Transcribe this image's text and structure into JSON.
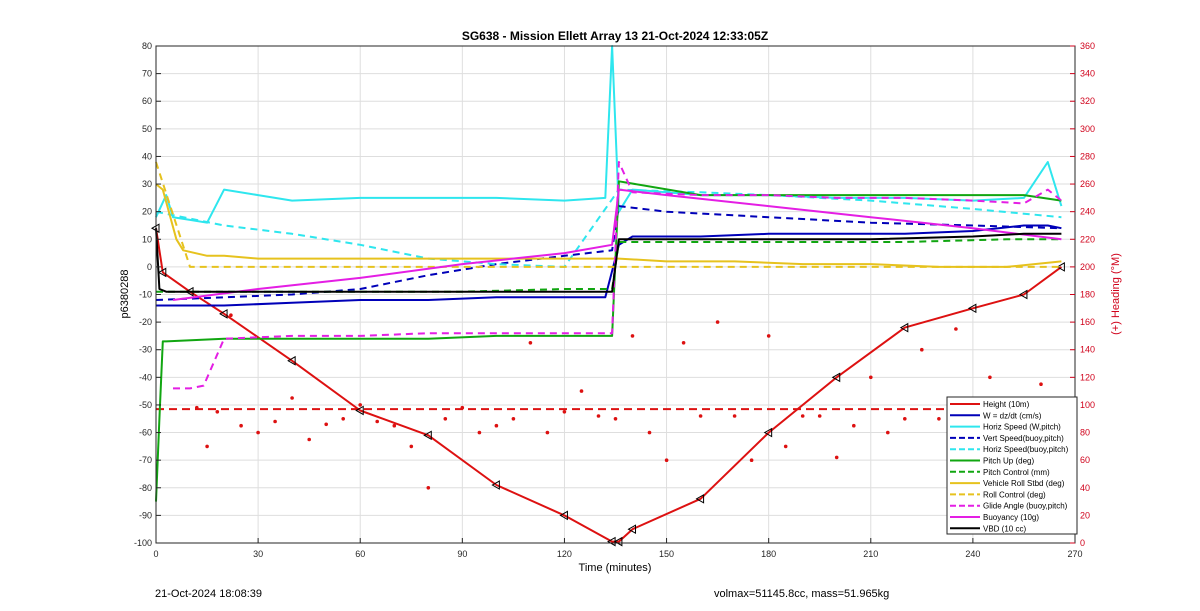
{
  "chart_data": {
    "type": "line",
    "title": "SG638 - Mission Ellett Array 13 21-Oct-2024 12:33:05Z",
    "xlabel": "Time (minutes)",
    "ylabel": "p6380288",
    "y2label": "(+) Heading (°M)",
    "xlim": [
      0,
      270
    ],
    "ylim": [
      -100,
      80
    ],
    "y2lim": [
      0,
      360
    ],
    "xticks": [
      "0",
      "30",
      "60",
      "90",
      "120",
      "150",
      "180",
      "210",
      "240",
      "270"
    ],
    "yticks": [
      "80",
      "70",
      "60",
      "50",
      "40",
      "30",
      "20",
      "10",
      "0",
      "-10",
      "-20",
      "-30",
      "-40",
      "-50",
      "-60",
      "-70",
      "-80",
      "-90",
      "-100"
    ],
    "y2ticks": [
      "360",
      "340",
      "320",
      "300",
      "280",
      "260",
      "240",
      "220",
      "200",
      "180",
      "160",
      "140",
      "120",
      "100",
      "80",
      "60",
      "40",
      "20",
      "0"
    ],
    "grid": true,
    "legend_position": "bottom-right",
    "colors": {
      "red": "#dd1111",
      "blue": "#0000b8",
      "cyan": "#2ee6ee",
      "green": "#11a611",
      "yellow": "#e6c21e",
      "magenta": "#e41ee4",
      "black": "#000000"
    },
    "series": [
      {
        "name": "Height (10m)",
        "color": "red",
        "style": "solid",
        "x": [
          0,
          2,
          10,
          20,
          40,
          60,
          80,
          100,
          120,
          134,
          136,
          140,
          160,
          180,
          200,
          220,
          240,
          255,
          266
        ],
        "y": [
          14,
          -2,
          -9,
          -17,
          -34,
          -52,
          -61,
          -79,
          -90,
          -99.5,
          -99.5,
          -95,
          -84,
          -60,
          -40,
          -22,
          -15,
          -10,
          0
        ]
      },
      {
        "name": "W = dz/dt (cm/s)",
        "color": "blue",
        "style": "solid",
        "x": [
          0,
          5,
          20,
          40,
          60,
          80,
          100,
          120,
          132,
          136,
          140,
          160,
          180,
          200,
          220,
          240,
          255,
          262,
          266
        ],
        "y": [
          -14,
          -14,
          -14,
          -13,
          -12,
          -12,
          -11,
          -11,
          -11,
          8,
          11,
          11,
          12,
          12,
          12,
          13,
          15,
          15,
          14
        ]
      },
      {
        "name": "Horiz Speed (W,pitch)",
        "color": "cyan",
        "style": "solid",
        "x": [
          0,
          3,
          5,
          10,
          15,
          20,
          30,
          40,
          60,
          80,
          100,
          120,
          132,
          134,
          136,
          140,
          160,
          180,
          200,
          220,
          240,
          255,
          262,
          266
        ],
        "y": [
          18,
          26,
          18,
          17,
          16,
          28,
          26,
          24,
          25,
          25,
          25,
          24,
          25,
          80,
          20,
          28,
          26,
          26,
          25,
          25,
          24,
          25,
          38,
          22
        ]
      },
      {
        "name": "Vert Speed(buoy,pitch)",
        "color": "blue",
        "style": "dashed",
        "x": [
          0,
          20,
          40,
          60,
          80,
          100,
          120,
          134,
          136,
          150,
          180,
          210,
          240,
          266
        ],
        "y": [
          -12,
          -11,
          -10,
          -8,
          -3,
          1,
          4,
          6,
          22,
          20,
          18,
          16,
          15,
          14
        ]
      },
      {
        "name": "Horiz Speed(buoy,pitch)",
        "color": "cyan",
        "style": "dashed",
        "x": [
          0,
          20,
          40,
          60,
          80,
          100,
          120,
          136,
          160,
          180,
          210,
          240,
          266
        ],
        "y": [
          20,
          15,
          12,
          8,
          3,
          1,
          0,
          28,
          27,
          26,
          24,
          21,
          18
        ]
      },
      {
        "name": "Pitch Up (deg)",
        "color": "green",
        "style": "solid",
        "x": [
          0,
          1,
          2,
          3,
          20,
          40,
          60,
          80,
          100,
          120,
          134,
          136,
          160,
          180,
          200,
          220,
          240,
          255,
          266
        ],
        "y": [
          -85,
          -55,
          -27,
          -27,
          -26,
          -26,
          -26,
          -26,
          -25,
          -25,
          -25,
          31,
          26,
          26,
          26,
          26,
          26,
          26,
          24
        ]
      },
      {
        "name": "Pitch Control (mm)",
        "color": "green",
        "style": "dashed",
        "x": [
          0,
          30,
          60,
          90,
          120,
          134,
          136,
          160,
          190,
          220,
          250,
          266
        ],
        "y": [
          -9,
          -9,
          -9,
          -9,
          -8,
          -8,
          9,
          9,
          9,
          9,
          10,
          10
        ]
      },
      {
        "name": "Vehicle Roll Stbd (deg)",
        "color": "yellow",
        "style": "solid",
        "x": [
          0,
          2,
          6,
          8,
          15,
          20,
          30,
          40,
          50,
          60,
          70,
          80,
          90,
          100,
          110,
          120,
          130,
          136,
          150,
          170,
          190,
          210,
          230,
          250,
          266
        ],
        "y": [
          30,
          28,
          10,
          6,
          4,
          4,
          3,
          3,
          3,
          3,
          3,
          3,
          3,
          3,
          3,
          3,
          3,
          3,
          2,
          2,
          1,
          1,
          0,
          0,
          2
        ]
      },
      {
        "name": "Roll Control (deg)",
        "color": "yellow",
        "style": "dashed",
        "x": [
          0,
          10,
          20,
          40,
          60,
          80,
          100,
          120,
          136,
          160,
          180,
          200,
          220,
          240,
          266
        ],
        "y": [
          38,
          0,
          0,
          0,
          0,
          0,
          0,
          0,
          0,
          0,
          0,
          0,
          0,
          0,
          0
        ]
      },
      {
        "name": "Glide Angle (buoy,pitch)",
        "color": "magenta",
        "style": "dashed",
        "x": [
          5,
          8,
          10,
          14,
          20,
          40,
          60,
          80,
          100,
          120,
          134,
          136,
          140,
          160,
          180,
          200,
          220,
          240,
          255,
          262,
          266
        ],
        "y": [
          -44,
          -44,
          -44,
          -43,
          -26,
          -25,
          -25,
          -24,
          -24,
          -24,
          -24,
          38,
          27,
          26,
          26,
          25,
          25,
          24,
          23,
          28,
          24
        ]
      },
      {
        "name": "Buoyancy (10g)",
        "color": "magenta",
        "style": "solid",
        "x": [
          5,
          30,
          60,
          90,
          120,
          134,
          136,
          150,
          180,
          210,
          240,
          266
        ],
        "y": [
          -12,
          -8,
          -4,
          1,
          5,
          8,
          28,
          26,
          22,
          18,
          14,
          10
        ]
      },
      {
        "name": "VBD (10 cc)",
        "color": "black",
        "style": "solid",
        "x": [
          0,
          1,
          3,
          20,
          60,
          100,
          130,
          134,
          136,
          150,
          180,
          210,
          240,
          255,
          266
        ],
        "y": [
          14,
          -8,
          -9,
          -9,
          -9,
          -9,
          -9,
          -9,
          10,
          10,
          10,
          10,
          11,
          12,
          12
        ]
      }
    ],
    "heading_dots": {
      "color": "red",
      "axis": "right",
      "x": [
        12,
        15,
        18,
        22,
        25,
        30,
        35,
        40,
        45,
        50,
        55,
        60,
        65,
        70,
        75,
        80,
        85,
        90,
        95,
        100,
        105,
        110,
        115,
        120,
        125,
        130,
        135,
        140,
        145,
        150,
        155,
        160,
        165,
        170,
        175,
        180,
        185,
        190,
        195,
        200,
        205,
        210,
        215,
        220,
        225,
        230,
        235,
        240,
        245,
        250,
        255,
        260,
        266
      ],
      "y": [
        98,
        70,
        95,
        165,
        85,
        80,
        88,
        105,
        75,
        86,
        90,
        100,
        88,
        85,
        70,
        40,
        90,
        98,
        80,
        85,
        90,
        145,
        80,
        95,
        110,
        92,
        90,
        150,
        80,
        60,
        145,
        92,
        160,
        92,
        60,
        150,
        70,
        92,
        92,
        62,
        85,
        120,
        80,
        90,
        140,
        90,
        155,
        85,
        120,
        90,
        70,
        115,
        70
      ]
    },
    "heading_reference": {
      "color": "red",
      "style": "dashed",
      "value": 97
    },
    "footer_left": "21-Oct-2024 18:08:39",
    "footer_right": "volmax=51145.8cc, mass=51.965kg"
  }
}
